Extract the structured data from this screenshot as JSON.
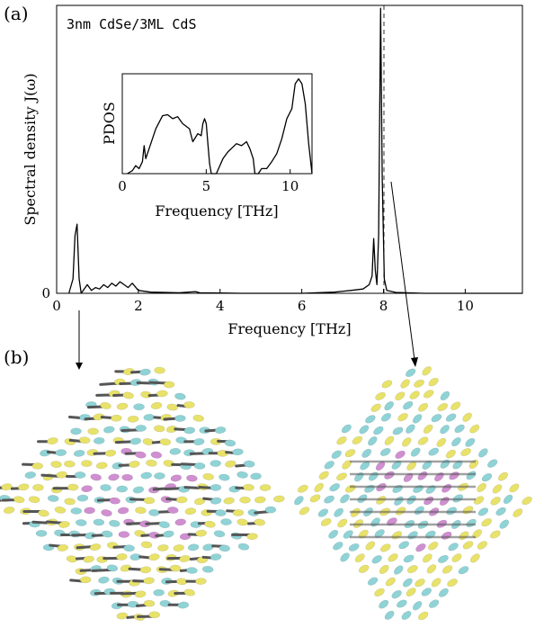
{
  "panels": {
    "a_label": "(a)",
    "b_label": "(b)"
  },
  "colors": {
    "line": "#000000",
    "atom_yellow": "#e8e26a",
    "atom_cyan": "#8fd3d6",
    "atom_magenta": "#cf8fd0",
    "arrow_gray": "#555555"
  },
  "chart_data": [
    {
      "type": "line",
      "title": "3nm CdSe/3ML CdS",
      "xlabel": "Frequency [THz]",
      "ylabel": "Spectral density J(ω)",
      "xlim": [
        0,
        11.4
      ],
      "ylim": [
        0,
        1.0
      ],
      "xticks": [
        0,
        2,
        4,
        6,
        8,
        10
      ],
      "ytick_labels": [
        "0"
      ],
      "grid": false,
      "dashed_reference_lines_x": [
        8.0
      ],
      "series": [
        {
          "x": [
            0.3,
            0.4,
            0.45,
            0.5,
            0.55,
            0.6,
            0.75,
            0.85,
            0.95,
            1.05,
            1.15,
            1.25,
            1.35,
            1.45,
            1.55,
            1.65,
            1.75,
            1.85,
            2.0,
            2.3,
            3.0,
            3.4,
            3.5,
            4.5,
            6.0,
            6.8,
            7.2,
            7.5,
            7.65,
            7.72,
            7.76,
            7.8,
            7.84,
            7.88,
            7.93,
            7.97,
            8.02,
            8.08,
            8.3,
            9.0,
            11.4
          ],
          "y": [
            0.0,
            0.05,
            0.2,
            0.24,
            0.05,
            0.0,
            0.03,
            0.01,
            0.02,
            0.015,
            0.03,
            0.02,
            0.035,
            0.025,
            0.04,
            0.03,
            0.02,
            0.035,
            0.01,
            0.004,
            0.002,
            0.006,
            0.002,
            0.0,
            0.0,
            0.004,
            0.01,
            0.015,
            0.03,
            0.06,
            0.19,
            0.08,
            0.03,
            0.2,
            0.99,
            0.4,
            0.05,
            0.01,
            0.003,
            0.0,
            0.0
          ]
        }
      ]
    },
    {
      "type": "line",
      "title": "",
      "xlabel": "Frequency [THz]",
      "ylabel": "PDOS",
      "xlim": [
        0,
        11.3
      ],
      "ylim": [
        0,
        1.0
      ],
      "xticks": [
        0,
        5,
        10
      ],
      "grid": false,
      "series": [
        {
          "x": [
            0.3,
            0.6,
            0.8,
            1.0,
            1.2,
            1.3,
            1.4,
            1.7,
            2.0,
            2.4,
            2.7,
            3.0,
            3.3,
            3.6,
            4.0,
            4.2,
            4.5,
            4.7,
            4.8,
            4.9,
            5.0,
            5.1,
            5.2,
            5.3,
            5.6,
            6.0,
            6.3,
            6.8,
            7.1,
            7.4,
            7.6,
            7.8,
            7.9,
            8.1,
            8.3,
            8.6,
            8.9,
            9.2,
            9.5,
            9.8,
            10.1,
            10.3,
            10.5,
            10.7,
            10.9,
            11.1,
            11.3
          ],
          "y": [
            0.0,
            0.03,
            0.08,
            0.05,
            0.12,
            0.28,
            0.15,
            0.3,
            0.45,
            0.58,
            0.59,
            0.55,
            0.57,
            0.5,
            0.45,
            0.32,
            0.4,
            0.38,
            0.5,
            0.55,
            0.5,
            0.3,
            0.1,
            0.0,
            0.0,
            0.15,
            0.22,
            0.3,
            0.28,
            0.32,
            0.25,
            0.15,
            0.0,
            0.0,
            0.05,
            0.05,
            0.12,
            0.2,
            0.35,
            0.55,
            0.65,
            0.9,
            0.95,
            0.9,
            0.7,
            0.3,
            0.0
          ]
        }
      ]
    }
  ]
}
